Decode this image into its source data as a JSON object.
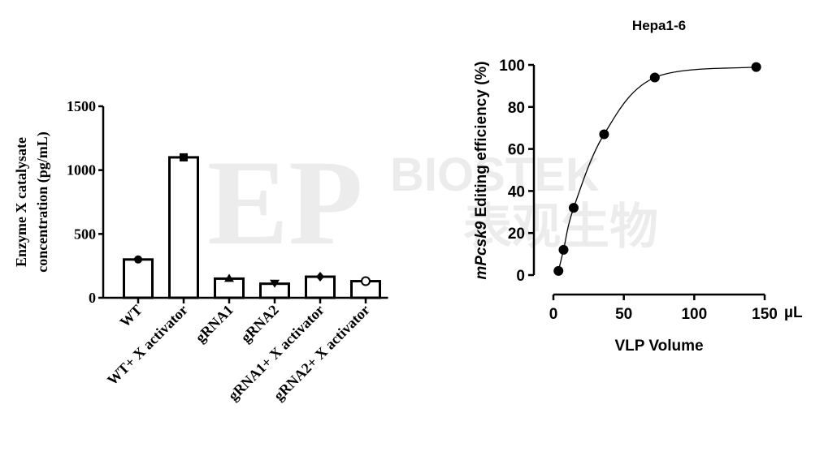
{
  "watermark": {
    "text": "EP BIOSTEK 表观生物"
  },
  "chart_data": [
    {
      "type": "bar",
      "title": "",
      "ylabel": "Enzyme X catalysate concentration (pg/mL)",
      "ylabel_lines": [
        "Enzyme X catalysate",
        "concentration (pg/mL)"
      ],
      "xlabel": "",
      "ylim": [
        0,
        1500
      ],
      "yticks": [
        0,
        500,
        1000,
        1500
      ],
      "categories": [
        "WT",
        "WT+ X activator",
        "gRNA1",
        "gRNA2",
        "gRNA1+ X activator",
        "gRNA2+ X activator"
      ],
      "values": [
        300,
        1100,
        150,
        110,
        165,
        130
      ],
      "markers": [
        "circle",
        "square",
        "triangle-up",
        "triangle-down",
        "diamond",
        "circle-open"
      ],
      "bar_fill": "#ffffff",
      "bar_stroke": "#000000",
      "grid": false
    },
    {
      "type": "line",
      "title": "Hepa1-6",
      "ylabel_italic": "mPcsk9",
      "ylabel_rest": " Editing efficiency (%)",
      "xlabel": "VLP Volume",
      "x_unit": "µL",
      "xlim": [
        0,
        150
      ],
      "ylim": [
        0,
        100
      ],
      "xticks": [
        0,
        50,
        100,
        150
      ],
      "yticks": [
        0,
        20,
        40,
        60,
        80,
        100
      ],
      "x": [
        3.6,
        7.2,
        14.4,
        36,
        72,
        144
      ],
      "y": [
        2,
        12,
        32,
        67,
        94,
        99
      ],
      "fit_curve": true,
      "marker": "filled-circle",
      "color": "#000000",
      "grid": false
    }
  ]
}
